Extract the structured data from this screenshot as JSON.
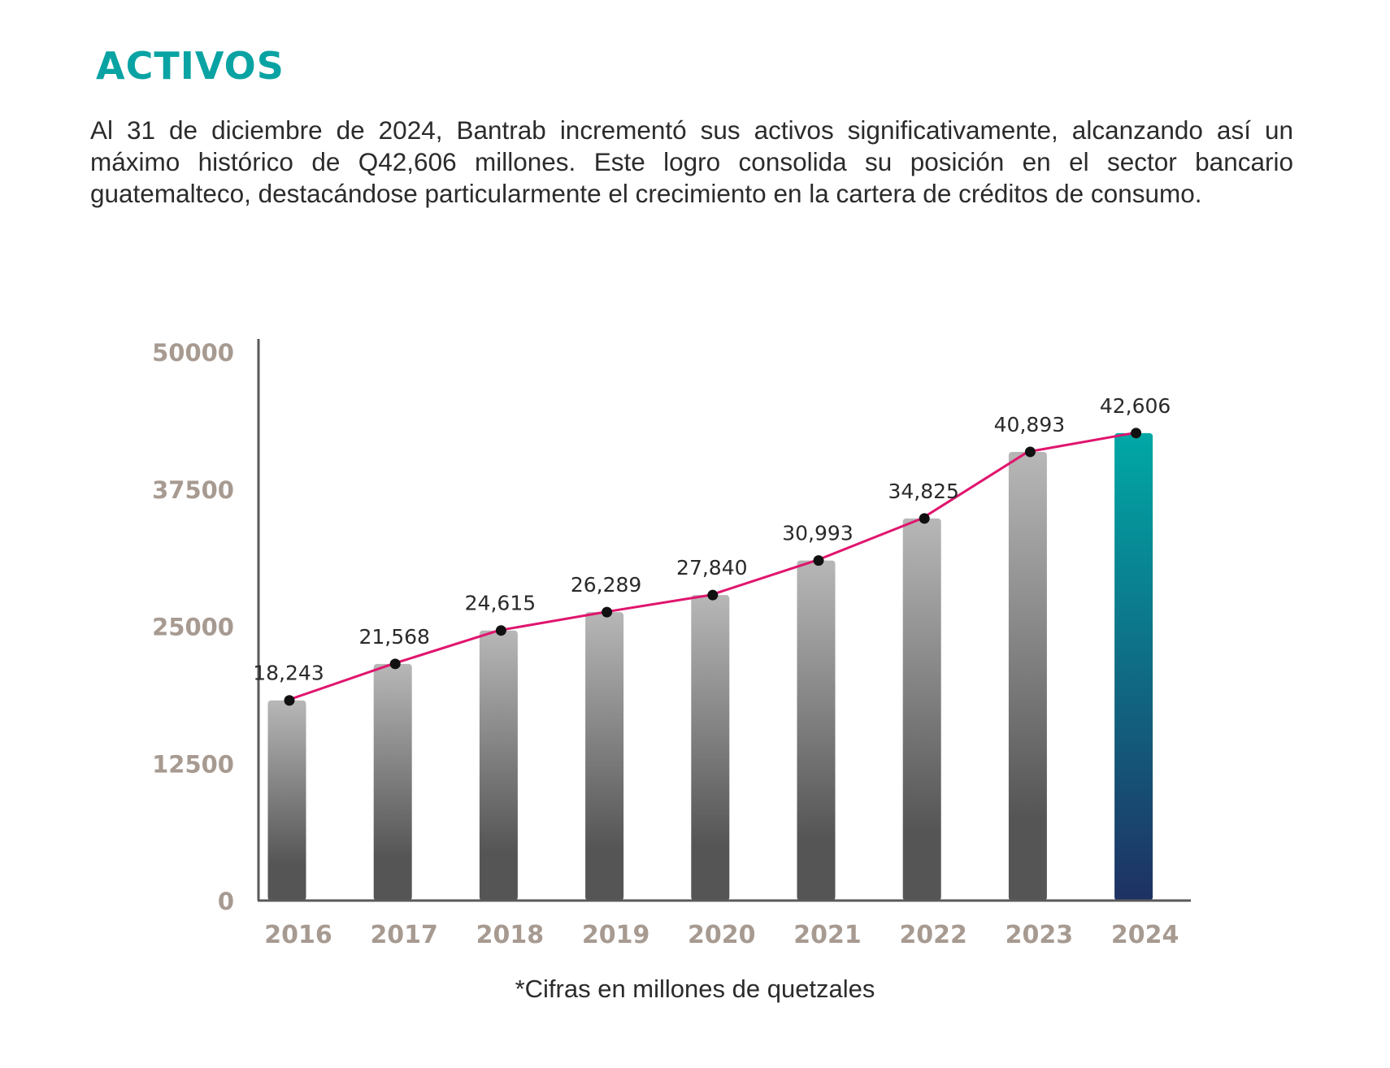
{
  "section": {
    "title": "ACTIVOS",
    "intro": "Al 31 de diciembre de 2024, Bantrab incrementó sus activos significativamente, alcanzando así un máximo histórico de Q42,606 millones. Este logro consolida su posición en el sector bancario guatemalteco, destacándose particularmente el crecimiento en la cartera de créditos de consumo.",
    "title_color": "#0aa3a3"
  },
  "chart_data": {
    "type": "bar",
    "categories": [
      "2016",
      "2017",
      "2018",
      "2019",
      "2020",
      "2021",
      "2022",
      "2023",
      "2024"
    ],
    "series": [
      {
        "type": "bar",
        "values": [
          18243,
          21568,
          24615,
          26289,
          27840,
          30993,
          34825,
          40893,
          42606
        ]
      },
      {
        "type": "line",
        "values": [
          18243,
          21568,
          24615,
          26289,
          27840,
          30993,
          34825,
          40893,
          42606
        ]
      }
    ],
    "data_labels": [
      "18,243",
      "21,568",
      "24,615",
      "26,289",
      "27,840",
      "30,993",
      "34,825",
      "40,893",
      "42,606"
    ],
    "yticks": [
      0,
      12500,
      25000,
      37500,
      50000
    ],
    "ytick_labels": [
      "0",
      "12500",
      "25000",
      "37500",
      "50000"
    ],
    "ylim": [
      0,
      50000
    ],
    "highlight_index": 8,
    "note": "*Cifras en millones de quetzales",
    "colors": {
      "bar_top": "#b7b7b7",
      "bar_bottom": "#555555",
      "highlight_top": "#00a8a6",
      "highlight_bottom": "#1e3163",
      "line": "#e0156e",
      "marker": "#111111",
      "axis": "#5a5a5a",
      "tick_label": "#a79a91"
    }
  }
}
